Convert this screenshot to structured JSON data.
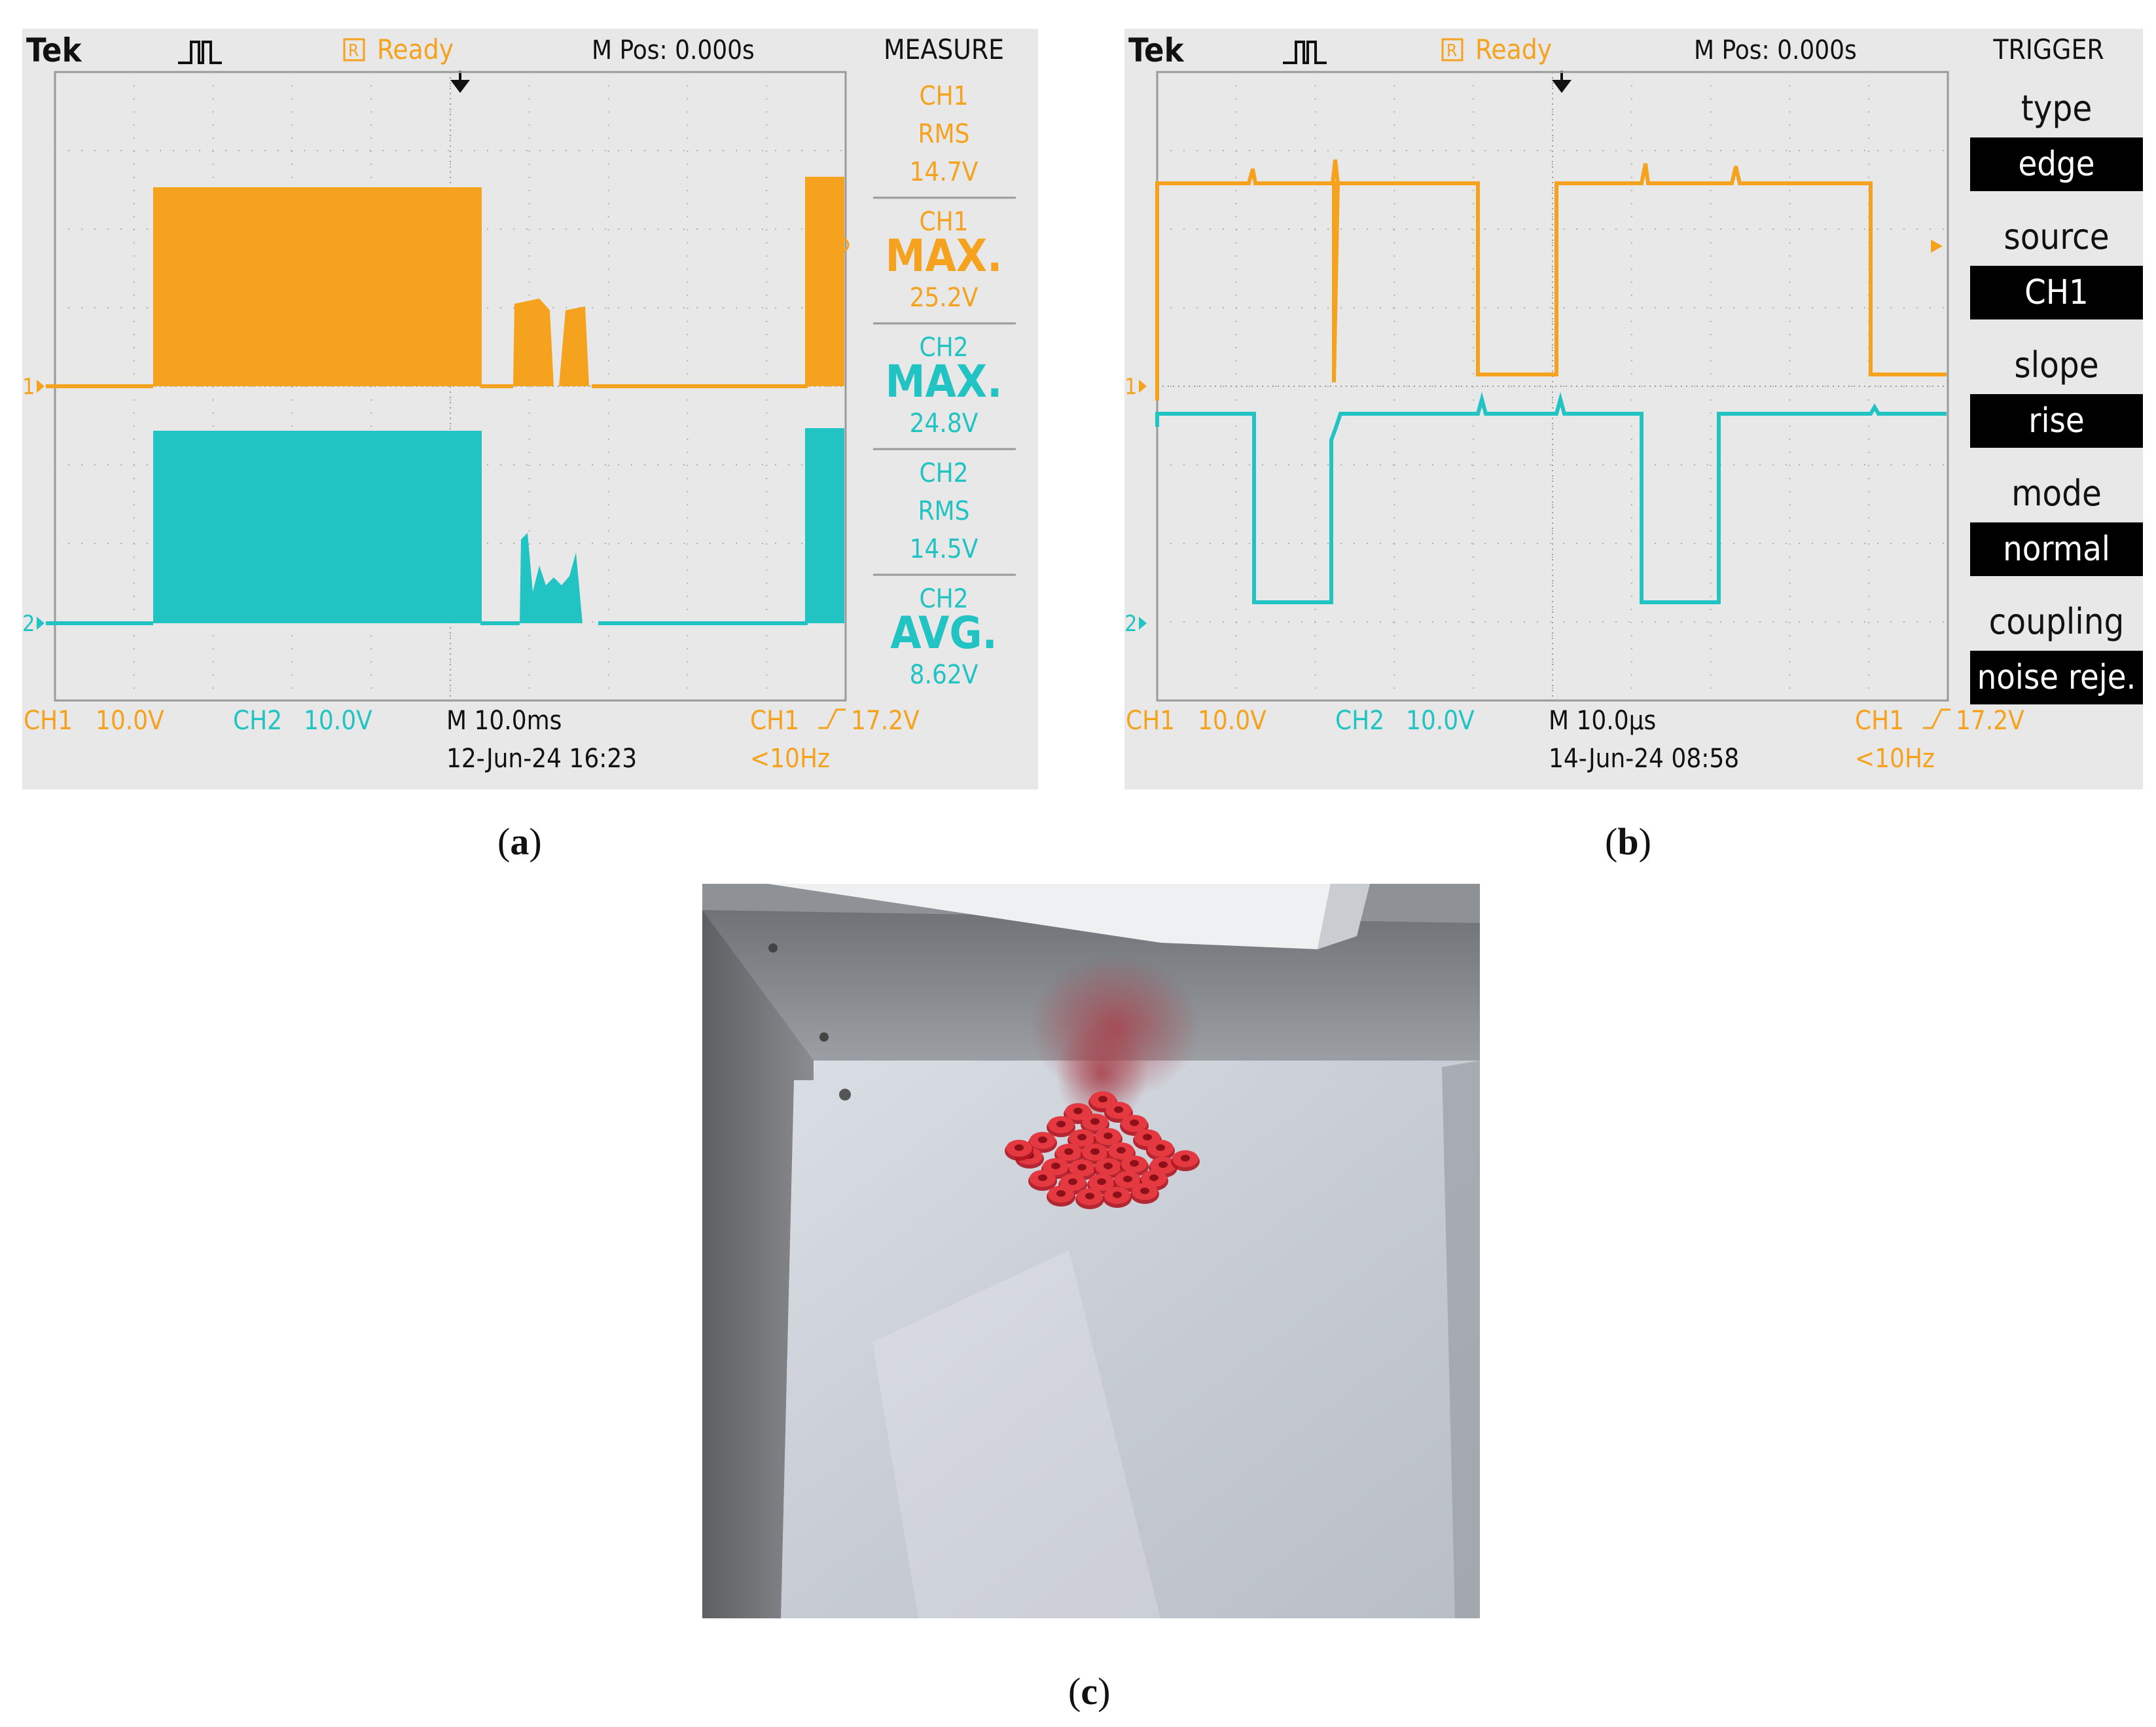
{
  "colors": {
    "ch1": "#f5a21f",
    "ch2": "#22c3c3",
    "screen_bg": "#e8e8e8",
    "grid": "#9a9a9a",
    "box_black": "#000000"
  },
  "panel_a": {
    "brand": "Tek",
    "trigger_icon": "trigger-pulse-icon",
    "status_letter": "R",
    "status_text": "Ready",
    "mpos": "M Pos: 0.000s",
    "menu_title": "MEASURE",
    "measures": [
      {
        "ch": "CH1",
        "label": "RMS",
        "value": "14.7V",
        "channel": 1,
        "big": false
      },
      {
        "ch": "CH1",
        "label": "MAX.",
        "value": "25.2V",
        "channel": 1,
        "big": true
      },
      {
        "ch": "CH2",
        "label": "MAX.",
        "value": "24.8V",
        "channel": 2,
        "big": true
      },
      {
        "ch": "CH2",
        "label": "RMS",
        "value": "14.5V",
        "channel": 2,
        "big": false
      },
      {
        "ch": "CH2",
        "label": "AVG.",
        "value": "8.62V",
        "channel": 2,
        "big": true
      }
    ],
    "ch1_marker": "1",
    "ch2_marker": "2",
    "ch1_scale_label": "CH1",
    "ch1_scale_value": "10.0V",
    "ch2_scale_label": "CH2",
    "ch2_scale_value": "10.0V",
    "timebase": "M 10.0ms",
    "date": "12-Jun-24 16:23",
    "trig_ch": "CH1",
    "trig_level": "17.2V",
    "freq": "<10Hz"
  },
  "panel_b": {
    "brand": "Tek",
    "trigger_icon": "trigger-pulse-icon",
    "status_letter": "R",
    "status_text": "Ready",
    "mpos": "M Pos: 0.000s",
    "menu_title": "TRIGGER",
    "trigger_items": [
      {
        "label": "type",
        "value": "edge"
      },
      {
        "label": "source",
        "value": "CH1"
      },
      {
        "label": "slope",
        "value": "rise"
      },
      {
        "label": "mode",
        "value": "normal"
      },
      {
        "label": "coupling",
        "value": "noise reje."
      }
    ],
    "ch1_marker": "1",
    "ch2_marker": "2",
    "ch1_scale_label": "CH1",
    "ch1_scale_value": "10.0V",
    "ch2_scale_label": "CH2",
    "ch2_scale_value": "10.0V",
    "timebase": "M 10.0µs",
    "date": "14-Jun-24 08:58",
    "trig_ch": "CH1",
    "trig_level": "17.2V",
    "freq": "<10Hz"
  },
  "captions": {
    "a": "a",
    "b": "b",
    "c": "c"
  }
}
